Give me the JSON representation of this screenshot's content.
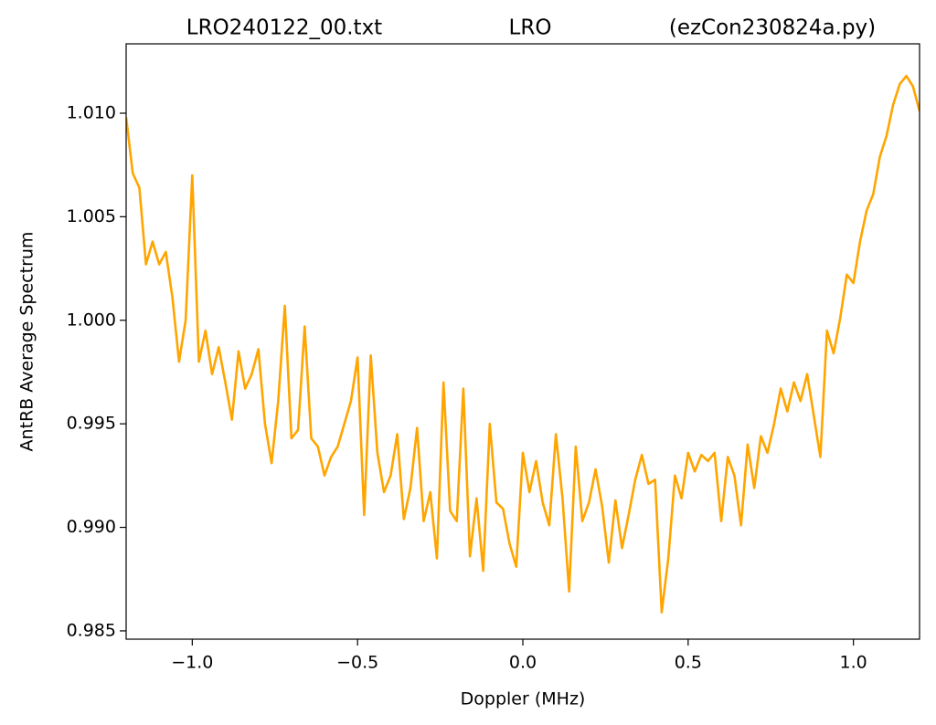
{
  "chart_data": {
    "type": "line",
    "title_parts": [
      "LRO240122_00.txt",
      "LRO",
      "(ezCon230824a.py)"
    ],
    "xlabel": "Doppler (MHz)",
    "ylabel": "AntRB Average Spectrum",
    "xlim": [
      -1.2,
      1.2
    ],
    "ylim": [
      0.9846,
      1.01335
    ],
    "xticks": [
      {
        "value": -1,
        "label": "−1.0"
      },
      {
        "value": -0.5,
        "label": "−0.5"
      },
      {
        "value": 0,
        "label": "0.0"
      },
      0.5,
      {
        "value": 1,
        "label": "1.0"
      }
    ],
    "yticks": [
      {
        "value": 0.985,
        "label": "0.985"
      },
      {
        "value": 0.99,
        "label": "0.990"
      },
      {
        "value": 0.995,
        "label": "0.995"
      },
      {
        "value": 1,
        "label": "1.000"
      },
      {
        "value": 1.005,
        "label": "1.005"
      },
      {
        "value": 1.01,
        "label": "1.010"
      }
    ],
    "series": [
      {
        "color": "#ffa500",
        "x": [
          -1.2,
          -1.18,
          -1.16,
          -1.14,
          -1.12,
          -1.1,
          -1.08,
          -1.06,
          -1.04,
          -1.02,
          -1,
          -0.98,
          -0.96,
          -0.94,
          -0.92,
          -0.9,
          -0.88,
          -0.86,
          -0.84,
          -0.82,
          -0.8,
          -0.78,
          -0.76,
          -0.74,
          -0.72,
          -0.7,
          -0.68,
          -0.66,
          -0.64,
          -0.62,
          -0.6,
          -0.58,
          -0.56,
          -0.54,
          -0.52,
          -0.5,
          -0.48,
          -0.46,
          -0.44,
          -0.42,
          -0.4,
          -0.38,
          -0.36,
          -0.34,
          -0.32,
          -0.3,
          -0.28,
          -0.26,
          -0.24,
          -0.22,
          -0.2,
          -0.18,
          -0.16,
          -0.14,
          -0.12,
          -0.1,
          -0.08,
          -0.06,
          -0.04,
          -0.02,
          0,
          0.02,
          0.04,
          0.06,
          0.08,
          0.1,
          0.12,
          0.14,
          0.16,
          0.18,
          0.2,
          0.22,
          0.24,
          0.26,
          0.28,
          0.3,
          0.32,
          0.34,
          0.36,
          0.38,
          0.4,
          0.42,
          0.44,
          0.46,
          0.48,
          0.5,
          0.52,
          0.54,
          0.56,
          0.58,
          0.6,
          0.62,
          0.64,
          0.66,
          0.68,
          0.7,
          0.72,
          0.74,
          0.76,
          0.78,
          0.8,
          0.82,
          0.84,
          0.86,
          0.88,
          0.9,
          0.92,
          0.94,
          0.96,
          0.98,
          1,
          1.02,
          1.04,
          1.06,
          1.08,
          1.1,
          1.12,
          1.14,
          1.16,
          1.18,
          1.2
        ],
        "values": [
          1.0098,
          1.0071,
          1.0064,
          1.0027,
          1.0038,
          1.0027,
          1.0033,
          1.0011,
          0.998,
          1.0,
          1.007,
          0.998,
          0.9995,
          0.9974,
          0.9987,
          0.997,
          0.9952,
          0.9985,
          0.9967,
          0.9974,
          0.9986,
          0.995,
          0.9931,
          0.9961,
          1.0007,
          0.9943,
          0.9947,
          0.9997,
          0.9943,
          0.9939,
          0.9925,
          0.9934,
          0.9939,
          0.995,
          0.9961,
          0.9982,
          0.9906,
          0.9983,
          0.9936,
          0.9917,
          0.9925,
          0.9945,
          0.9904,
          0.9919,
          0.9948,
          0.9903,
          0.9917,
          0.9885,
          0.997,
          0.9908,
          0.9903,
          0.9967,
          0.9886,
          0.9914,
          0.9879,
          0.995,
          0.9912,
          0.9909,
          0.9892,
          0.9881,
          0.9936,
          0.9917,
          0.9932,
          0.9912,
          0.9901,
          0.9945,
          0.9914,
          0.9869,
          0.9939,
          0.9903,
          0.9912,
          0.9928,
          0.991,
          0.9883,
          0.9913,
          0.989,
          0.9906,
          0.9923,
          0.9935,
          0.9921,
          0.9923,
          0.9859,
          0.9885,
          0.9925,
          0.9914,
          0.9936,
          0.9927,
          0.9935,
          0.9932,
          0.9936,
          0.9903,
          0.9934,
          0.9925,
          0.9901,
          0.994,
          0.9919,
          0.9944,
          0.9936,
          0.995,
          0.9967,
          0.9956,
          0.997,
          0.9961,
          0.9974,
          0.9954,
          0.9934,
          0.9995,
          0.9984,
          1.0001,
          1.0022,
          1.0018,
          1.0038,
          1.0053,
          1.0061,
          1.0079,
          1.0089,
          1.0104,
          1.0114,
          1.0118,
          1.0113,
          1.0101
        ]
      }
    ]
  }
}
